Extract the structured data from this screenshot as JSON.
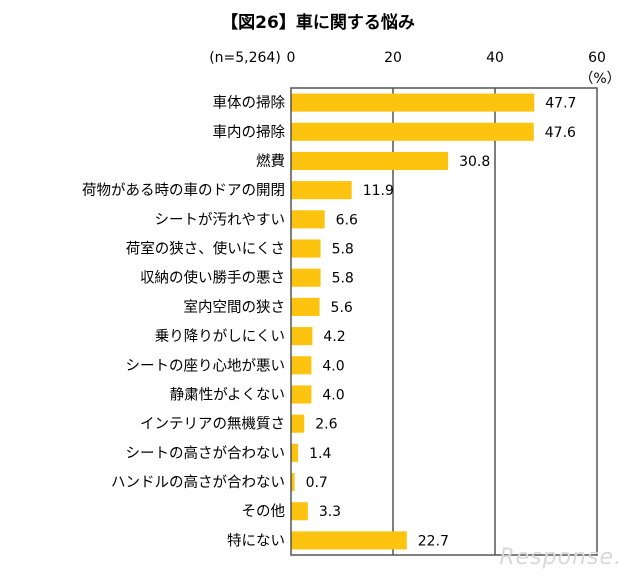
{
  "chart_data": {
    "type": "bar",
    "orientation": "horizontal",
    "title": "【図26】車に関する悩み",
    "sample_size": "(n=5,264)",
    "unit": "（%）",
    "xlim": [
      0,
      60
    ],
    "xticks": [
      0,
      20,
      40,
      60
    ],
    "bar_color": "#fcc30f",
    "categories": [
      "車体の掃除",
      "車内の掃除",
      "燃費",
      "荷物がある時の車のドアの開閉",
      "シートが汚れやすい",
      "荷室の狭さ、使いにくさ",
      "収納の使い勝手の悪さ",
      "室内空間の狭さ",
      "乗り降りがしにくい",
      "シートの座り心地が悪い",
      "静粛性がよくない",
      "インテリアの無機質さ",
      "シートの高さが合わない",
      "ハンドルの高さが合わない",
      "その他",
      "特にない"
    ],
    "values": [
      47.7,
      47.6,
      30.8,
      11.9,
      6.6,
      5.8,
      5.8,
      5.6,
      4.2,
      4.0,
      4.0,
      2.6,
      1.4,
      0.7,
      3.3,
      22.7
    ],
    "value_labels": [
      "47.7",
      "47.6",
      "30.8",
      "11.9",
      "6.6",
      "5.8",
      "5.8",
      "5.6",
      "4.2",
      "4.0",
      "4.0",
      "2.6",
      "1.4",
      "0.7",
      "3.3",
      "22.7"
    ]
  },
  "watermark": "Response."
}
